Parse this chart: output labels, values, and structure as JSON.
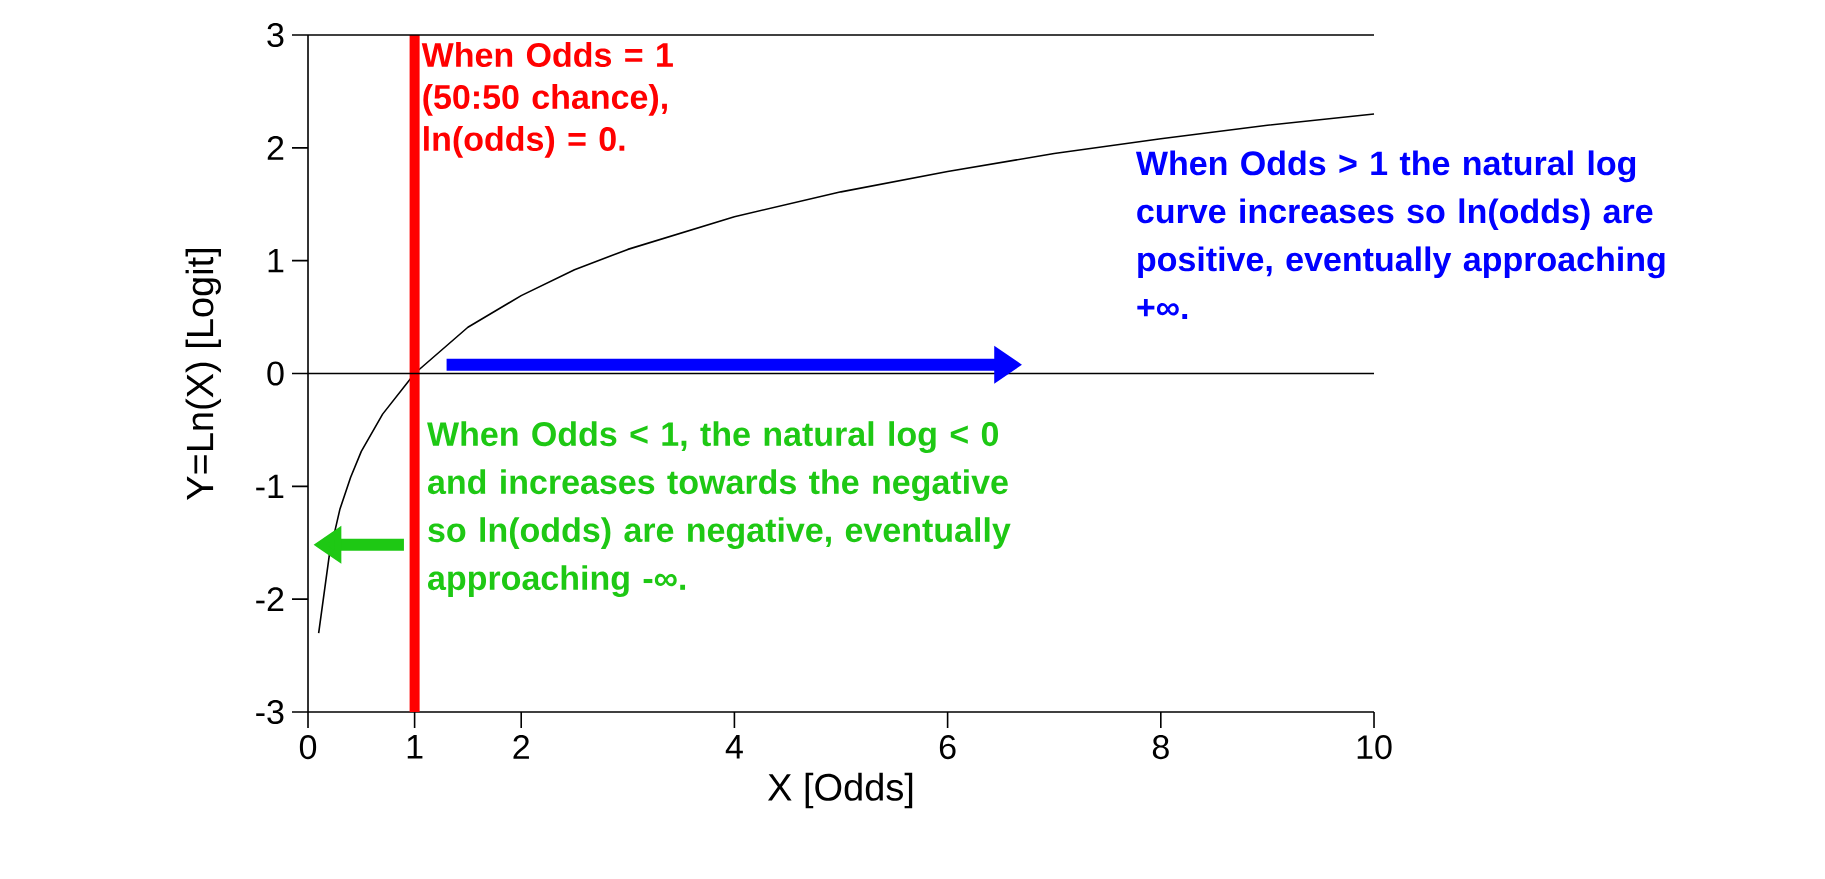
{
  "chart_data": {
    "type": "line",
    "xlabel": "X [Odds]",
    "ylabel": "Y=Ln(X) [Logit]",
    "x": [
      0.1,
      0.2,
      0.3,
      0.4,
      0.5,
      0.7,
      1,
      1.5,
      2,
      2.5,
      3,
      4,
      5,
      6,
      7,
      8,
      9,
      10
    ],
    "series": [
      {
        "color": "#000000",
        "values": [
          -2.3,
          -1.61,
          -1.2,
          -0.92,
          -0.69,
          -0.36,
          0,
          0.41,
          0.69,
          0.92,
          1.1,
          1.39,
          1.61,
          1.79,
          1.95,
          2.08,
          2.2,
          2.3
        ]
      }
    ],
    "xlim": [
      0,
      10
    ],
    "ylim": [
      -3,
      3
    ],
    "xticks": [
      0,
      1,
      2,
      4,
      6,
      8,
      10
    ],
    "yticks": [
      -3,
      -2,
      -1,
      0,
      1,
      2,
      3
    ],
    "ref_lines": [
      {
        "axis": "x",
        "value": 1,
        "color": "#ff0000",
        "label": "When Odds = 1 (50:50 chance), ln(odds) = 0."
      },
      {
        "axis": "y",
        "value": 0,
        "color": "#000000"
      }
    ],
    "annotations": [
      "When Odds > 1 the natural log curve increases so ln(odds) are positive, eventually approaching +∞.",
      "When Odds < 1, the natural log < 0 and increases towards the negative so ln(odds) are negative, eventually approaching -∞."
    ],
    "grid": false,
    "marker": "none",
    "line_style": "solid"
  }
}
